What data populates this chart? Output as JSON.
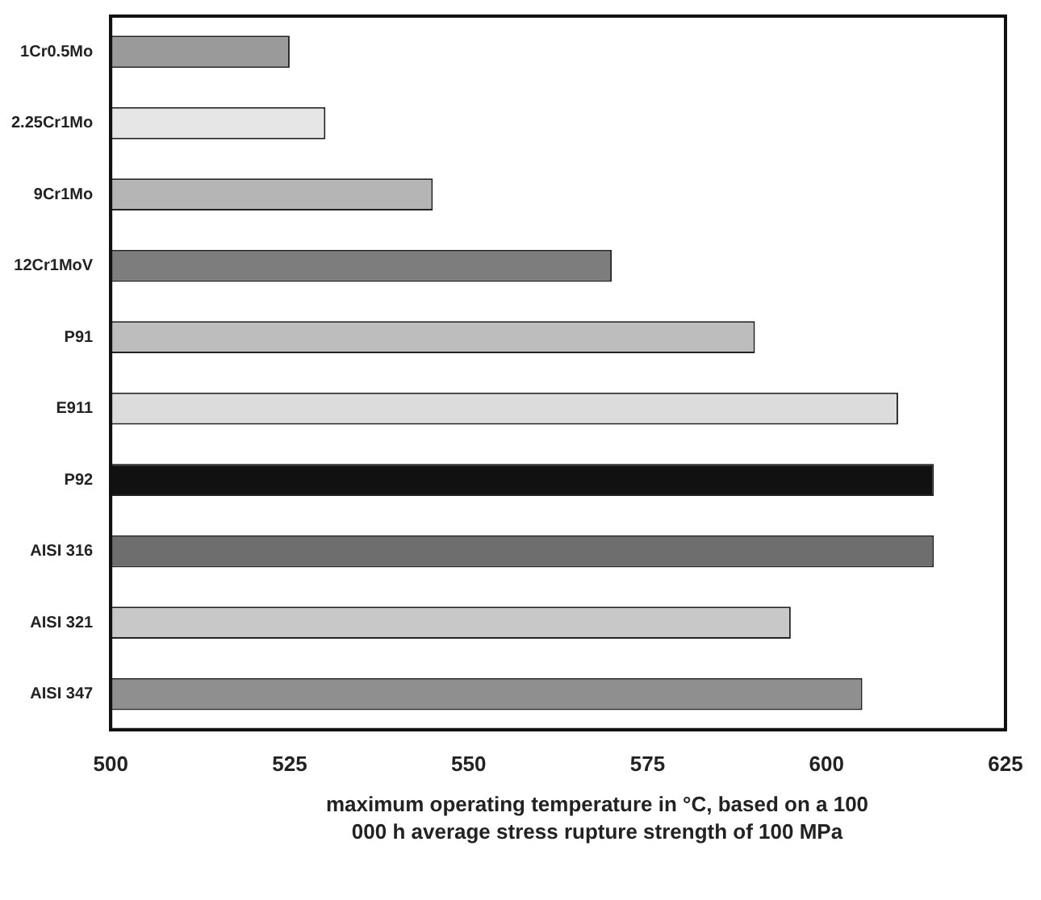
{
  "chart_data": {
    "type": "bar",
    "orientation": "horizontal",
    "categories": [
      "1Cr0.5Mo",
      "2.25Cr1Mo",
      "9Cr1Mo",
      "12Cr1MoV",
      "P91",
      "E911",
      "P92",
      "AISI 316",
      "AISI 321",
      "AISI 347"
    ],
    "values": [
      525,
      530,
      545,
      570,
      590,
      610,
      615,
      615,
      595,
      605
    ],
    "colors": [
      "#9a9a9a",
      "#e6e6e6",
      "#b5b5b5",
      "#7d7d7d",
      "#bdbdbd",
      "#dcdcdc",
      "#111111",
      "#6e6e6e",
      "#c8c8c8",
      "#8f8f8f"
    ],
    "xlim": [
      500,
      625
    ],
    "xticks": [
      500,
      525,
      550,
      575,
      600,
      625
    ],
    "xlabel": "maximum operating temperature in °C, based on a 100 000 h average stress rupture strength of 100 MPa",
    "grid": false,
    "legend": false
  }
}
